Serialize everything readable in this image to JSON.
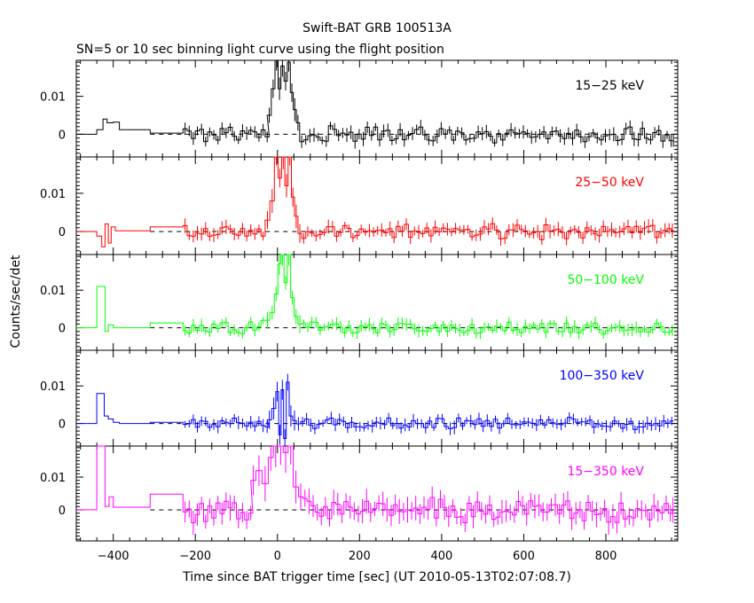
{
  "chart_data": {
    "type": "line",
    "title": "Swift-BAT GRB 100513A",
    "subtitle": "SN=5 or 10 sec binning light curve using the flight position",
    "xlabel": "Time since BAT trigger time [sec] (UT 2010-05-13T02:07:08.7)",
    "ylabel": "Counts/sec/det",
    "xlim": [
      -490,
      975
    ],
    "x_ticks": [
      -400,
      -200,
      0,
      200,
      400,
      600,
      800
    ],
    "x_tick_labels": [
      "−400",
      "−200",
      "0",
      "200",
      "400",
      "600",
      "800"
    ],
    "y_ticks": [
      0,
      0.01
    ],
    "y_tick_labels": [
      "0",
      "0.01"
    ],
    "grid": false,
    "panels": [
      {
        "name": "15−25 keV",
        "color": "#000000",
        "ylim": [
          -0.006,
          0.0195
        ],
        "pre": [
          [
            -490,
            -440,
            0
          ],
          [
            -440,
            -425,
            0.0012
          ],
          [
            -425,
            -415,
            0.004
          ],
          [
            -415,
            -400,
            0.003
          ],
          [
            -400,
            -385,
            0.0032
          ],
          [
            -385,
            -310,
            0.0012
          ],
          [
            -310,
            -230,
            0.0003
          ]
        ],
        "burst": [
          [
            -20,
            0.005
          ],
          [
            -10,
            0.012
          ],
          [
            -2,
            0.0195
          ],
          [
            5,
            0.012
          ],
          [
            12,
            0.018
          ],
          [
            20,
            0.014
          ],
          [
            28,
            0.019
          ],
          [
            35,
            0.011
          ],
          [
            42,
            0.0065
          ],
          [
            50,
            0.003
          ]
        ],
        "noise": 0.0018,
        "err": 0.0016
      },
      {
        "name": "25−50 keV",
        "color": "#ff0000",
        "ylim": [
          -0.006,
          0.0195
        ],
        "pre": [
          [
            -490,
            -440,
            0
          ],
          [
            -440,
            -428,
            -0.0012
          ],
          [
            -428,
            -420,
            -0.004
          ],
          [
            -420,
            -412,
            0.002
          ],
          [
            -412,
            -405,
            -0.003
          ],
          [
            -405,
            -395,
            0.0012
          ],
          [
            -395,
            -310,
            0.0002
          ],
          [
            -310,
            -230,
            0.0012
          ]
        ],
        "burst": [
          [
            -25,
            0.003
          ],
          [
            -12,
            0.008
          ],
          [
            -3,
            0.0195
          ],
          [
            6,
            0.014
          ],
          [
            14,
            0.0195
          ],
          [
            22,
            0.012
          ],
          [
            30,
            0.0195
          ],
          [
            38,
            0.009
          ],
          [
            45,
            0.004
          ],
          [
            55,
            -0.0005
          ]
        ],
        "noise": 0.0017,
        "err": 0.0016
      },
      {
        "name": "50−100 keV",
        "color": "#00ff00",
        "ylim": [
          -0.006,
          0.0195
        ],
        "pre": [
          [
            -490,
            -440,
            0
          ],
          [
            -440,
            -420,
            0.011
          ],
          [
            -420,
            -412,
            -0.001
          ],
          [
            -412,
            -400,
            0.0008
          ],
          [
            -400,
            -310,
            0
          ],
          [
            -310,
            -230,
            0.0013
          ]
        ],
        "burst": [
          [
            -25,
            0.002
          ],
          [
            -12,
            0.004
          ],
          [
            -3,
            0.009
          ],
          [
            5,
            0.017
          ],
          [
            12,
            0.0195
          ],
          [
            20,
            0.012
          ],
          [
            28,
            0.0195
          ],
          [
            36,
            0.008
          ],
          [
            45,
            0.003
          ],
          [
            55,
            0.001
          ]
        ],
        "noise": 0.0016,
        "err": 0.0015
      },
      {
        "name": "100−350 keV",
        "color": "#0000ff",
        "ylim": [
          -0.006,
          0.0195
        ],
        "pre": [
          [
            -490,
            -440,
            0
          ],
          [
            -440,
            -422,
            0.008
          ],
          [
            -422,
            -412,
            0.002
          ],
          [
            -412,
            -400,
            0.0012
          ],
          [
            -400,
            -385,
            0.0003
          ],
          [
            -385,
            -310,
            0
          ],
          [
            -310,
            -230,
            0.0003
          ]
        ],
        "burst": [
          [
            -20,
            0.001
          ],
          [
            -8,
            0.004
          ],
          [
            0,
            0.0085
          ],
          [
            6,
            -0.003
          ],
          [
            12,
            0.009
          ],
          [
            18,
            -0.004
          ],
          [
            25,
            0.011
          ],
          [
            32,
            0.002
          ],
          [
            42,
            0.0008
          ]
        ],
        "noise": 0.0014,
        "err": 0.0015
      },
      {
        "name": "15−350 keV",
        "color": "#ff00ff",
        "ylim": [
          -0.0095,
          0.0195
        ],
        "pre": [
          [
            -490,
            -440,
            0
          ],
          [
            -440,
            -420,
            0.02
          ],
          [
            -420,
            -410,
            0.001
          ],
          [
            -410,
            -400,
            0.004
          ],
          [
            -400,
            -385,
            0.0008
          ],
          [
            -385,
            -310,
            0.0008
          ],
          [
            -310,
            -230,
            0.0048
          ]
        ],
        "burst": [
          [
            -60,
            0.009
          ],
          [
            -45,
            0.012
          ],
          [
            -30,
            0.008
          ],
          [
            -15,
            0.016
          ],
          [
            -5,
            0.0195
          ],
          [
            8,
            0.0195
          ],
          [
            20,
            0.0175
          ],
          [
            32,
            0.0195
          ],
          [
            45,
            0.007
          ],
          [
            58,
            0.004
          ]
        ],
        "noise": 0.0033,
        "err": 0.0033
      }
    ]
  }
}
